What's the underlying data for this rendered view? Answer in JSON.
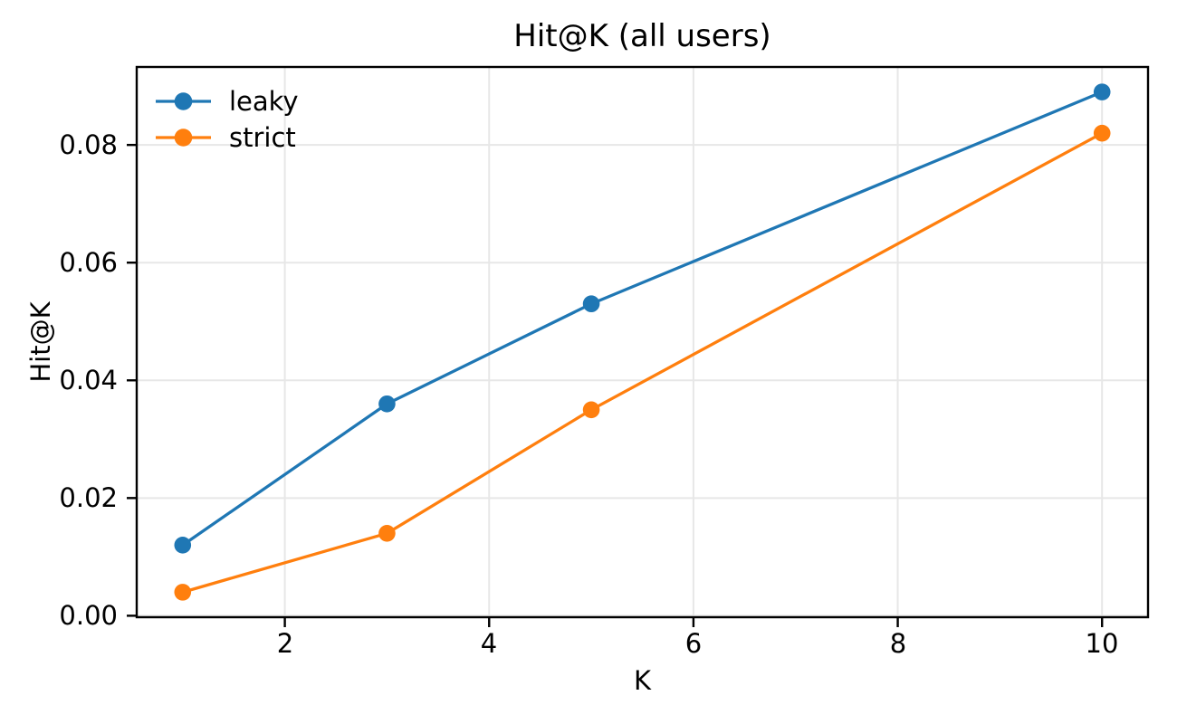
{
  "chart_data": {
    "type": "line",
    "title": "Hit@K (all users)",
    "xlabel": "K",
    "ylabel": "Hit@K",
    "x": [
      1,
      3,
      5,
      10
    ],
    "series": [
      {
        "name": "leaky",
        "color": "#1f77b4",
        "values": [
          0.012,
          0.036,
          0.053,
          0.089
        ]
      },
      {
        "name": "strict",
        "color": "#ff7f0e",
        "values": [
          0.004,
          0.014,
          0.035,
          0.082
        ]
      }
    ],
    "xlim": [
      0.55,
      10.45
    ],
    "ylim": [
      -0.00025,
      0.09325
    ],
    "xticks": [
      2,
      4,
      6,
      8,
      10
    ],
    "xtick_labels": [
      "2",
      "4",
      "6",
      "8",
      "10"
    ],
    "yticks": [
      0,
      0.02,
      0.04,
      0.06,
      0.08
    ],
    "ytick_labels": [
      "0.00",
      "0.02",
      "0.04",
      "0.06",
      "0.08"
    ],
    "grid": true,
    "legend": {
      "position": "upper left",
      "frame": false
    },
    "colors": {
      "grid": "#e7e7e7",
      "spine": "#000000",
      "text": "#000000",
      "background": "#ffffff"
    }
  }
}
